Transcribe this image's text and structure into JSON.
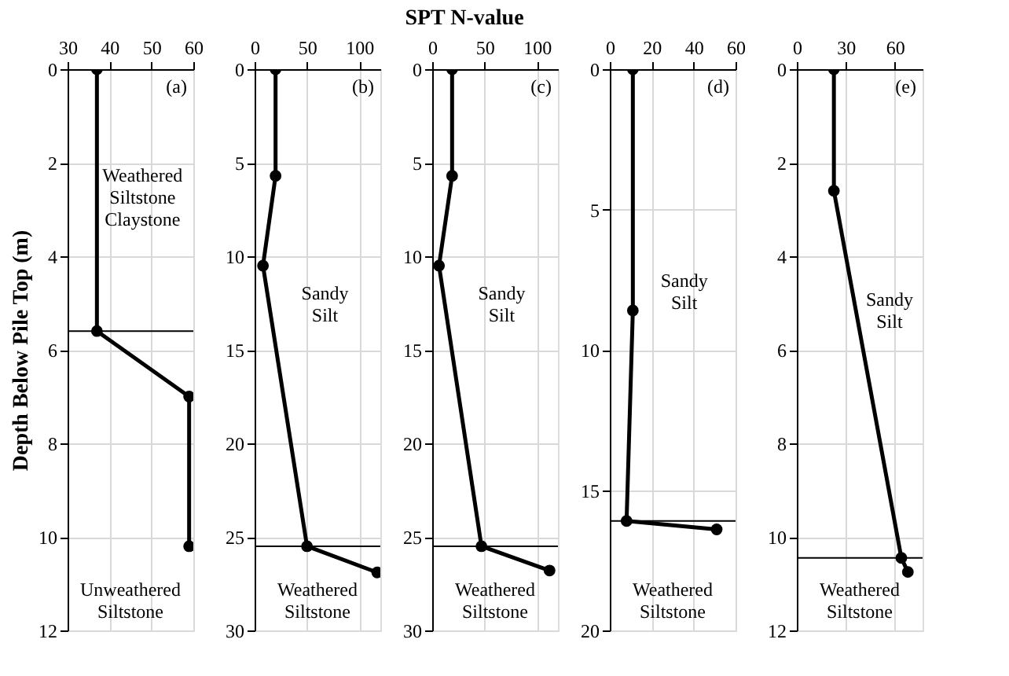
{
  "chart_data": [
    {
      "type": "line",
      "ylabel": "Depth  Below Pile Top (m)",
      "xlim": [
        30,
        60
      ],
      "xticks": [
        30,
        40,
        50,
        60
      ],
      "ylim": [
        12,
        0
      ],
      "yticks": [
        0,
        2,
        4,
        6,
        8,
        10,
        12
      ],
      "grid": true,
      "marker": "circle",
      "line_style": "solid",
      "series": [
        {
          "color": "#000000",
          "x": [
            37,
            37,
            59,
            59
          ],
          "values": [
            0,
            5.6,
            7.0,
            10.2
          ]
        }
      ],
      "ref_lines": [
        {
          "axis": "y",
          "value": 5.6,
          "color": "#000000"
        }
      ],
      "annotations": [
        "(a)",
        "Weathered Siltstone Claystone",
        "Unweathered Siltstone"
      ]
    },
    {
      "type": "line",
      "xlim": [
        0,
        120
      ],
      "xticks": [
        0,
        50,
        100
      ],
      "ylim": [
        30,
        0
      ],
      "yticks": [
        0,
        5,
        10,
        15,
        20,
        25,
        30
      ],
      "grid": true,
      "marker": "circle",
      "line_style": "solid",
      "series": [
        {
          "color": "#000000",
          "x": [
            20,
            20,
            8,
            50,
            117
          ],
          "values": [
            0,
            5.7,
            10.5,
            25.5,
            26.9
          ]
        }
      ],
      "ref_lines": [
        {
          "axis": "y",
          "value": 25.5,
          "color": "#000000"
        }
      ],
      "annotations": [
        "(b)",
        "Sandy Silt",
        "Weathered Siltstone"
      ]
    },
    {
      "type": "line",
      "xlabel": "SPT N-value",
      "xlim": [
        0,
        120
      ],
      "xticks": [
        0,
        50,
        100
      ],
      "ylim": [
        30,
        0
      ],
      "yticks": [
        0,
        5,
        10,
        15,
        20,
        25,
        30
      ],
      "grid": true,
      "marker": "circle",
      "line_style": "solid",
      "series": [
        {
          "color": "#000000",
          "x": [
            19,
            19,
            6.5,
            47,
            112
          ],
          "values": [
            0,
            5.7,
            10.5,
            25.5,
            26.8
          ]
        }
      ],
      "ref_lines": [
        {
          "axis": "y",
          "value": 25.5,
          "color": "#000000"
        }
      ],
      "annotations": [
        "(c)",
        "Sandy Silt",
        "Weathered Siltstone"
      ]
    },
    {
      "type": "line",
      "xlim": [
        0,
        60
      ],
      "xticks": [
        0,
        20,
        40,
        60
      ],
      "ylim": [
        20,
        0
      ],
      "yticks": [
        0,
        5,
        10,
        15,
        20
      ],
      "grid": true,
      "marker": "circle",
      "line_style": "solid",
      "series": [
        {
          "color": "#000000",
          "x": [
            11,
            11,
            8,
            51
          ],
          "values": [
            0,
            8.6,
            16.1,
            16.4
          ]
        }
      ],
      "ref_lines": [
        {
          "axis": "y",
          "value": 16.1,
          "color": "#000000"
        }
      ],
      "annotations": [
        "(d)",
        "Sandy Silt",
        "Weathered Siltstone"
      ]
    },
    {
      "type": "line",
      "xlim": [
        0,
        77
      ],
      "xticks": [
        0,
        30,
        60
      ],
      "ylim": [
        12,
        0
      ],
      "yticks": [
        0,
        2,
        4,
        6,
        8,
        10,
        12
      ],
      "grid": true,
      "marker": "circle",
      "line_style": "solid",
      "series": [
        {
          "color": "#000000",
          "x": [
            22.7,
            22.7,
            64,
            68
          ],
          "values": [
            0,
            2.6,
            10.45,
            10.75
          ]
        }
      ],
      "ref_lines": [
        {
          "axis": "y",
          "value": 10.45,
          "color": "#000000"
        }
      ],
      "annotations": [
        "(e)",
        "Sandy Silt",
        "Weathered Siltstone"
      ]
    }
  ]
}
